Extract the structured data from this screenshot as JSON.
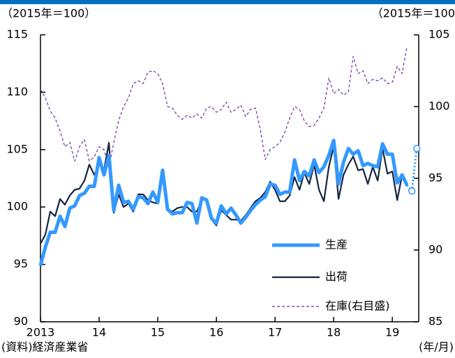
{
  "chart_data": {
    "type": "line",
    "y_unit_left": "（2015年＝100）",
    "y_unit_right": "（2015年＝100",
    "source": "(資料)経済産業省",
    "x_unit": "(年/月)",
    "x": [
      2013.0,
      2013.083,
      2013.167,
      2013.25,
      2013.333,
      2013.417,
      2013.5,
      2013.583,
      2013.667,
      2013.75,
      2013.833,
      2013.917,
      2014.0,
      2014.083,
      2014.167,
      2014.25,
      2014.333,
      2014.417,
      2014.5,
      2014.583,
      2014.667,
      2014.75,
      2014.833,
      2014.917,
      2015.0,
      2015.083,
      2015.167,
      2015.25,
      2015.333,
      2015.417,
      2015.5,
      2015.583,
      2015.667,
      2015.75,
      2015.833,
      2015.917,
      2016.0,
      2016.083,
      2016.167,
      2016.25,
      2016.333,
      2016.417,
      2016.5,
      2016.583,
      2016.667,
      2016.75,
      2016.833,
      2016.917,
      2017.0,
      2017.083,
      2017.167,
      2017.25,
      2017.333,
      2017.417,
      2017.5,
      2017.583,
      2017.667,
      2017.75,
      2017.833,
      2017.917,
      2018.0,
      2018.083,
      2018.167,
      2018.25,
      2018.333,
      2018.417,
      2018.5,
      2018.583,
      2018.667,
      2018.75,
      2018.833,
      2018.917,
      2019.0,
      2019.083,
      2019.167,
      2019.25
    ],
    "series": [
      {
        "name": "生産",
        "color": "#3399ff",
        "axis": "y",
        "values": [
          94.9,
          96.5,
          97.8,
          97.8,
          99.2,
          98.3,
          99.9,
          100.1,
          101.0,
          101.2,
          101.8,
          101.8,
          104.3,
          102.8,
          104.5,
          99.7,
          101.9,
          100.4,
          100.5,
          99.8,
          100.9,
          100.8,
          100.3,
          101.3,
          100.4,
          103.2,
          99.8,
          99.4,
          99.5,
          99.5,
          100.4,
          100.3,
          98.6,
          100.8,
          100.6,
          99.0,
          98.6,
          100.1,
          99.4,
          99.9,
          99.3,
          98.6,
          99.1,
          99.7,
          100.2,
          100.6,
          100.9,
          102.0,
          101.9,
          101.1,
          101.3,
          101.3,
          104.1,
          102.3,
          103.1,
          102.7,
          104.1,
          103.0,
          103.5,
          104.5,
          105.8,
          102.0,
          103.9,
          105.1,
          104.6,
          104.9,
          103.6,
          103.8,
          103.6,
          103.5,
          105.5,
          104.6,
          104.6,
          102.1,
          102.8,
          101.9
        ]
      },
      {
        "name": "出荷",
        "color": "#16243f",
        "axis": "y",
        "values": [
          96.8,
          97.6,
          99.6,
          99.2,
          100.7,
          100.2,
          101.0,
          101.5,
          101.6,
          102.3,
          103.7,
          102.8,
          103.7,
          103.2,
          105.6,
          99.5,
          101.1,
          100.0,
          100.3,
          99.6,
          101.1,
          101.1,
          100.6,
          100.4,
          100.3,
          103.3,
          99.8,
          99.6,
          99.9,
          100.0,
          100.0,
          99.6,
          99.6,
          100.6,
          100.7,
          98.9,
          98.4,
          99.7,
          99.3,
          98.9,
          98.9,
          98.8,
          99.3,
          99.9,
          100.5,
          100.8,
          101.3,
          102.2,
          101.5,
          100.5,
          100.5,
          101.0,
          102.6,
          101.5,
          103.0,
          102.0,
          103.7,
          101.5,
          100.5,
          103.5,
          105.3,
          100.7,
          102.8,
          103.7,
          104.4,
          103.2,
          103.3,
          102.0,
          103.5,
          102.3,
          105.1,
          102.9,
          103.1,
          100.6,
          102.8,
          101.8
        ]
      },
      {
        "name": "在庫(右目盛)",
        "color": "#7030a0",
        "axis": "y2",
        "values": [
          101.2,
          100.6,
          99.7,
          99.2,
          98.3,
          97.2,
          97.5,
          96.2,
          97.2,
          97.7,
          96.2,
          96.5,
          97.2,
          97.0,
          95.8,
          97.5,
          99.0,
          100.0,
          100.6,
          101.6,
          101.8,
          101.6,
          102.4,
          102.5,
          102.3,
          101.6,
          100.0,
          99.9,
          99.4,
          99.1,
          99.4,
          99.2,
          99.5,
          99.2,
          99.9,
          100.0,
          99.6,
          99.8,
          100.3,
          99.6,
          99.8,
          100.1,
          99.3,
          99.8,
          99.9,
          98.4,
          96.3,
          97.0,
          97.2,
          97.5,
          98.2,
          99.2,
          100.0,
          99.8,
          99.0,
          98.6,
          98.7,
          99.2,
          99.9,
          102.0,
          100.9,
          101.2,
          100.8,
          101.0,
          103.5,
          102.3,
          102.5,
          101.6,
          101.9,
          101.8,
          102.0,
          101.6,
          101.7,
          102.8,
          102.3,
          104.2
        ]
      }
    ],
    "forecast": {
      "color": "#3399ff",
      "x": [
        2019.333,
        2019.417
      ],
      "values": [
        101.4,
        105.1
      ]
    },
    "xlim": [
      2013,
      2019.45
    ],
    "xticks": [
      {
        "value": 2013,
        "label": "2013"
      },
      {
        "value": 2014,
        "label": "14"
      },
      {
        "value": 2015,
        "label": "15"
      },
      {
        "value": 2016,
        "label": "16"
      },
      {
        "value": 2017,
        "label": "17"
      },
      {
        "value": 2018,
        "label": "18"
      },
      {
        "value": 2019,
        "label": "19"
      }
    ],
    "ylim": [
      90,
      115
    ],
    "yticks": [
      90,
      95,
      100,
      105,
      110,
      115
    ],
    "y2lim": [
      85,
      105
    ],
    "y2ticks": [
      85,
      90,
      95,
      100,
      105
    ]
  }
}
